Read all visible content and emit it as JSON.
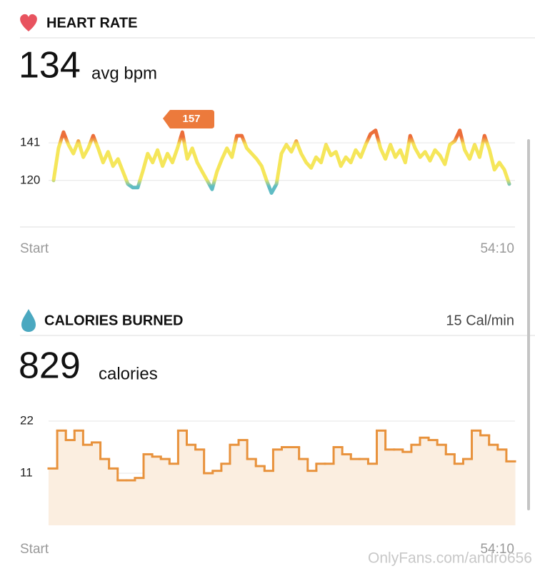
{
  "chart_data": [
    {
      "type": "line",
      "title": "HEART RATE",
      "summary": 134,
      "summary_unit": "avg bpm",
      "annotation": 157,
      "x_labels": [
        "Start",
        "54:10"
      ],
      "values": [
        120,
        138,
        147,
        140,
        135,
        142,
        133,
        138,
        145,
        138,
        130,
        136,
        128,
        132,
        125,
        118,
        116,
        116,
        125,
        135,
        130,
        137,
        128,
        135,
        130,
        138,
        147,
        132,
        138,
        130,
        125,
        120,
        115,
        125,
        132,
        138,
        133,
        145,
        145,
        138,
        135,
        132,
        128,
        120,
        113,
        118,
        135,
        140,
        136,
        142,
        135,
        130,
        127,
        133,
        130,
        140,
        134,
        136,
        128,
        133,
        130,
        137,
        133,
        140,
        146,
        148,
        138,
        132,
        140,
        133,
        137,
        130,
        145,
        138,
        133,
        136,
        131,
        137,
        134,
        129,
        140,
        142,
        148,
        137,
        132,
        140,
        133,
        145,
        137,
        126,
        130,
        126,
        118
      ],
      "ylim": [
        94,
        161
      ],
      "yticks": [
        141,
        120
      ],
      "grid": true
    },
    {
      "type": "step-area",
      "title": "CALORIES BURNED",
      "rate": "15 Cal/min",
      "summary": 829,
      "summary_unit": "calories",
      "x_labels": [
        "Start",
        "54:10"
      ],
      "color": "#e8923c",
      "values": [
        12,
        20,
        18,
        20,
        17,
        17.5,
        14,
        12,
        9.5,
        9.5,
        10,
        15,
        14.5,
        14,
        13,
        20,
        17,
        16,
        11,
        11.5,
        13,
        17,
        18,
        14,
        12.5,
        11.5,
        16,
        16.5,
        16.5,
        14,
        11.5,
        13,
        13,
        16.5,
        15,
        14,
        14,
        13,
        20,
        16,
        16,
        15.5,
        17,
        18.5,
        18,
        17,
        15,
        13,
        14,
        20,
        19,
        17,
        16,
        13.5
      ],
      "ylim": [
        0,
        22
      ],
      "yticks": [
        22,
        11
      ],
      "grid": true
    }
  ],
  "watermark": "OnlyFans.com/andro656"
}
